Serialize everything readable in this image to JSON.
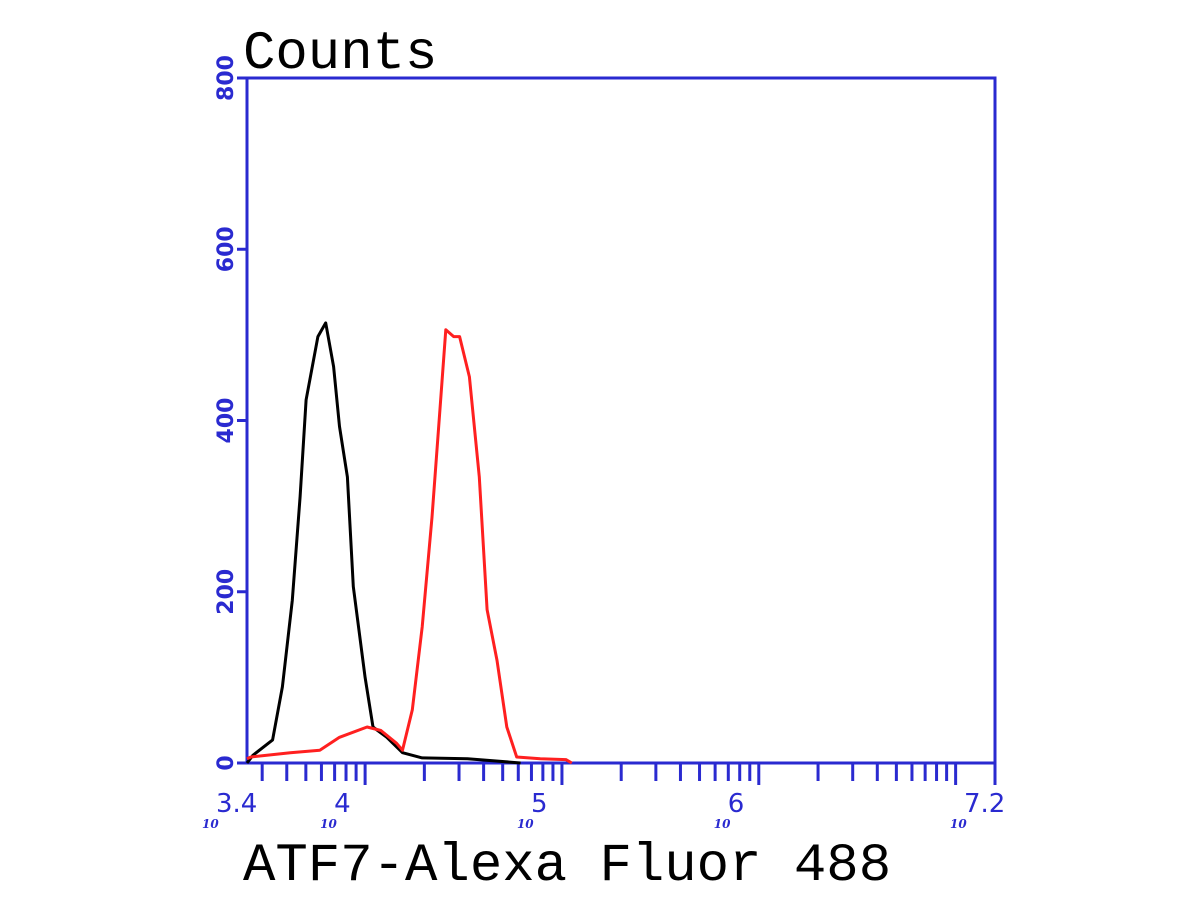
{
  "chart_data": {
    "type": "line",
    "title": "Counts",
    "xlabel": "ATF7-Alexa Fluor 488",
    "ylabel": "Counts",
    "x_scale": "log10",
    "xlim": [
      3.4,
      7.2
    ],
    "ylim": [
      0,
      800
    ],
    "y_ticks": [
      "0",
      "200",
      "400",
      "600",
      "800"
    ],
    "x_ticks": [
      {
        "base": "10",
        "exp": "3.4",
        "value": 3.4
      },
      {
        "base": "10",
        "exp": "4",
        "value": 4
      },
      {
        "base": "10",
        "exp": "5",
        "value": 5
      },
      {
        "base": "10",
        "exp": "6",
        "value": 6
      },
      {
        "base": "10",
        "exp": "7.2",
        "value": 7.2
      }
    ],
    "grid": false,
    "axis_color": "#2a2ad0",
    "series": [
      {
        "color": "#000000",
        "log_x": [
          3.4,
          3.43,
          3.53,
          3.58,
          3.63,
          3.67,
          3.7,
          3.76,
          3.8,
          3.84,
          3.87,
          3.91,
          3.94,
          4.0,
          4.04,
          4.11,
          4.19,
          4.29,
          4.52,
          4.79
        ],
        "counts": [
          0,
          9,
          27,
          89,
          190,
          311,
          424,
          498,
          514,
          463,
          393,
          334,
          206,
          100,
          42,
          30,
          12,
          6,
          5,
          0
        ]
      },
      {
        "color": "#ff2020",
        "log_x": [
          3.4,
          3.42,
          3.62,
          3.77,
          3.87,
          4.01,
          4.08,
          4.16,
          4.19,
          4.24,
          4.29,
          4.34,
          4.38,
          4.41,
          4.45,
          4.48,
          4.53,
          4.58,
          4.62,
          4.67,
          4.72,
          4.77,
          4.89,
          5.02,
          5.05
        ],
        "counts": [
          5,
          7,
          12,
          15,
          30,
          42,
          38,
          23,
          15,
          62,
          159,
          287,
          412,
          506,
          498,
          498,
          451,
          334,
          179,
          120,
          42,
          7,
          5,
          4,
          0
        ]
      }
    ]
  }
}
